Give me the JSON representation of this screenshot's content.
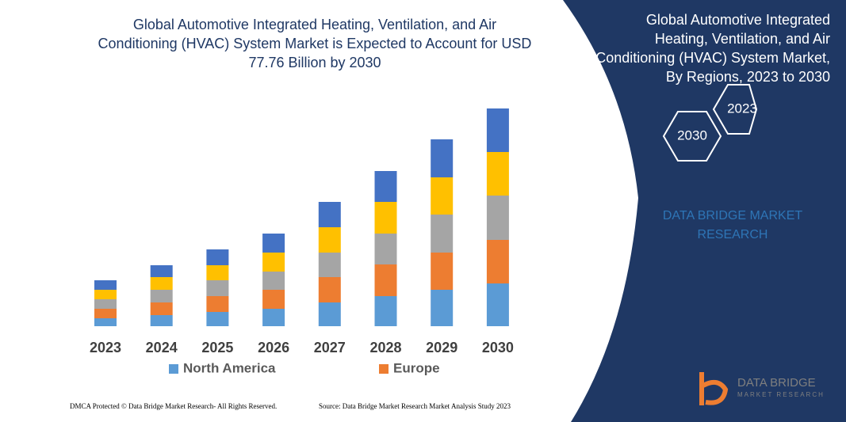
{
  "chart_data": {
    "type": "stacked_bar",
    "title": "Global Automotive Integrated Heating, Ventilation, and Air Conditioning (HVAC) System Market is Expected to Account for USD 77.76 Billion by 2030",
    "categories": [
      "2023",
      "2024",
      "2025",
      "2026",
      "2027",
      "2028",
      "2029",
      "2030"
    ],
    "series": [
      {
        "name": "North America",
        "color": "#5b9bd5",
        "values": [
          10,
          14,
          18,
          22,
          30,
          38,
          46,
          54
        ]
      },
      {
        "name": "Europe",
        "color": "#ed7d31",
        "values": [
          12,
          16,
          20,
          24,
          32,
          40,
          47,
          55
        ]
      },
      {
        "color": "#a5a5a5",
        "values": [
          12,
          16,
          20,
          23,
          31,
          39,
          48,
          56
        ]
      },
      {
        "color": "#ffc000",
        "values": [
          12,
          16,
          19,
          24,
          32,
          40,
          47,
          55
        ]
      },
      {
        "color": "#4472c4",
        "values": [
          12,
          15,
          20,
          24,
          32,
          39,
          48,
          55
        ]
      }
    ]
  },
  "panel": {
    "title": "Global Automotive Integrated Heating, Ventilation, and Air Conditioning (HVAC) System Market, By Regions, 2023 to 2030",
    "hex_start": "2023",
    "hex_end": "2030",
    "brand": "DATA BRIDGE MARKET RESEARCH"
  },
  "logo": {
    "name": "DATA BRIDGE",
    "tagline": "MARKET RESEARCH"
  },
  "footer": {
    "left": "DMCA Protected © Data Bridge Market Research- All Rights Reserved.",
    "right": "Source: Data Bridge Market Research Market Analysis Study 2023"
  }
}
